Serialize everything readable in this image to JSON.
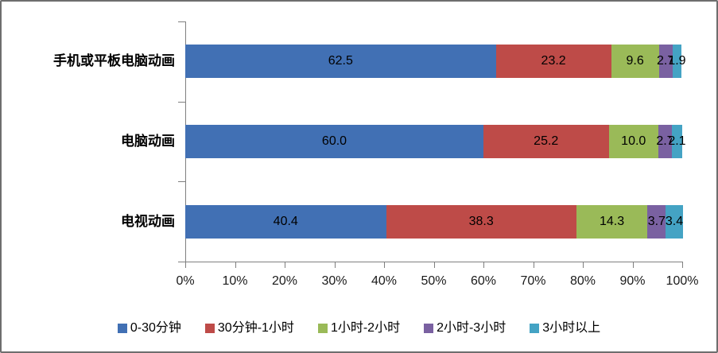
{
  "chart_data": {
    "type": "bar",
    "orientation": "horizontal",
    "stacked": true,
    "title": "",
    "categories": [
      "手机或平板电脑动画",
      "电脑动画",
      "电视动画"
    ],
    "series": [
      {
        "name": "0-30分钟",
        "color": "#4170B4",
        "values": [
          62.5,
          60.0,
          40.4
        ],
        "labels": [
          "62.5",
          "60.0",
          "40.4"
        ]
      },
      {
        "name": "30分钟-1小时",
        "color": "#BE4B48",
        "values": [
          23.2,
          25.2,
          38.3
        ],
        "labels": [
          "23.2",
          "25.2",
          "38.3"
        ]
      },
      {
        "name": "1小时-2小时",
        "color": "#9ABA58",
        "values": [
          9.6,
          10.0,
          14.3
        ],
        "labels": [
          "9.6",
          "10.0",
          "14.3"
        ]
      },
      {
        "name": "2小时-3小时",
        "color": "#7A61A1",
        "values": [
          2.7,
          2.7,
          3.7
        ],
        "labels": [
          "2.7",
          "2.7",
          "3.7"
        ]
      },
      {
        "name": "3小时以上",
        "color": "#44A3C4",
        "values": [
          1.9,
          2.1,
          3.4
        ],
        "labels": [
          "1.9",
          "2.1",
          "3.4"
        ]
      }
    ],
    "x_axis": {
      "min": 0,
      "max": 100,
      "step": 10,
      "tick_labels": [
        "0%",
        "10%",
        "20%",
        "30%",
        "40%",
        "50%",
        "60%",
        "70%",
        "80%",
        "90%",
        "100%"
      ]
    },
    "data_labels": true,
    "grid": false,
    "legend_position": "bottom"
  },
  "colors": {
    "axis": "#7f7f7f",
    "border": "#6e6e6e",
    "background": "#ffffff",
    "label_text": "#000000"
  }
}
